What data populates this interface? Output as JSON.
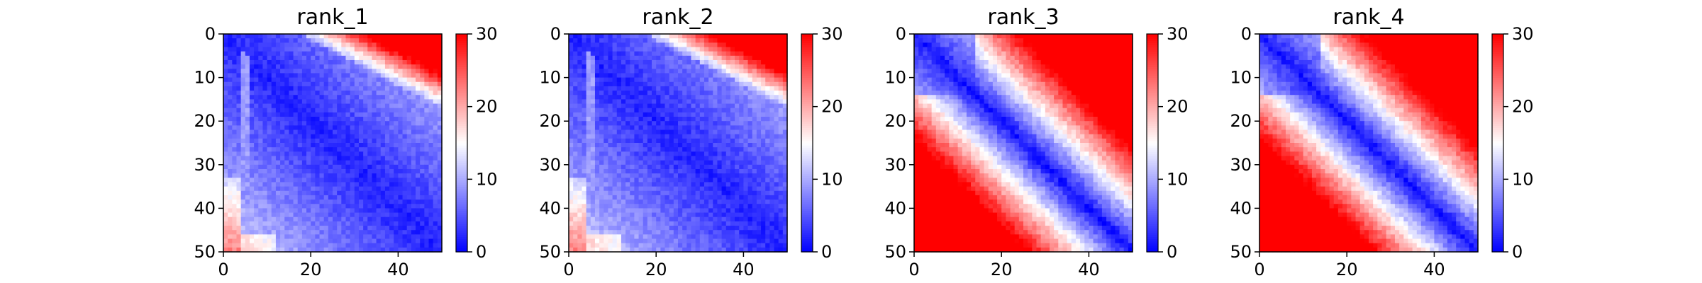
{
  "chart_data": [
    {
      "type": "heatmap",
      "title": "rank_1",
      "pattern": "cooled",
      "shape": [
        50,
        50
      ],
      "x_ticks": [
        "0",
        "20",
        "40"
      ],
      "y_ticks": [
        "0",
        "10",
        "20",
        "30",
        "40",
        "50"
      ],
      "colorbar_ticks": [
        "0",
        "10",
        "20",
        "30"
      ],
      "vmin": 0,
      "vmax": 30,
      "colormap": "bwr"
    },
    {
      "type": "heatmap",
      "title": "rank_2",
      "pattern": "cooled",
      "shape": [
        50,
        50
      ],
      "x_ticks": [
        "0",
        "20",
        "40"
      ],
      "y_ticks": [
        "0",
        "10",
        "20",
        "30",
        "40",
        "50"
      ],
      "colorbar_ticks": [
        "0",
        "10",
        "20",
        "30"
      ],
      "vmin": 0,
      "vmax": 30,
      "colormap": "bwr"
    },
    {
      "type": "heatmap",
      "title": "rank_3",
      "pattern": "diagonal",
      "shape": [
        50,
        50
      ],
      "x_ticks": [
        "0",
        "20",
        "40"
      ],
      "y_ticks": [
        "0",
        "10",
        "20",
        "30",
        "40",
        "50"
      ],
      "colorbar_ticks": [
        "0",
        "10",
        "20",
        "30"
      ],
      "vmin": 0,
      "vmax": 30,
      "colormap": "bwr"
    },
    {
      "type": "heatmap",
      "title": "rank_4",
      "pattern": "diagonal",
      "shape": [
        50,
        50
      ],
      "x_ticks": [
        "0",
        "20",
        "40"
      ],
      "y_ticks": [
        "0",
        "10",
        "20",
        "30",
        "40",
        "50"
      ],
      "colorbar_ticks": [
        "0",
        "10",
        "20",
        "30"
      ],
      "vmin": 0,
      "vmax": 30,
      "colormap": "bwr"
    }
  ]
}
